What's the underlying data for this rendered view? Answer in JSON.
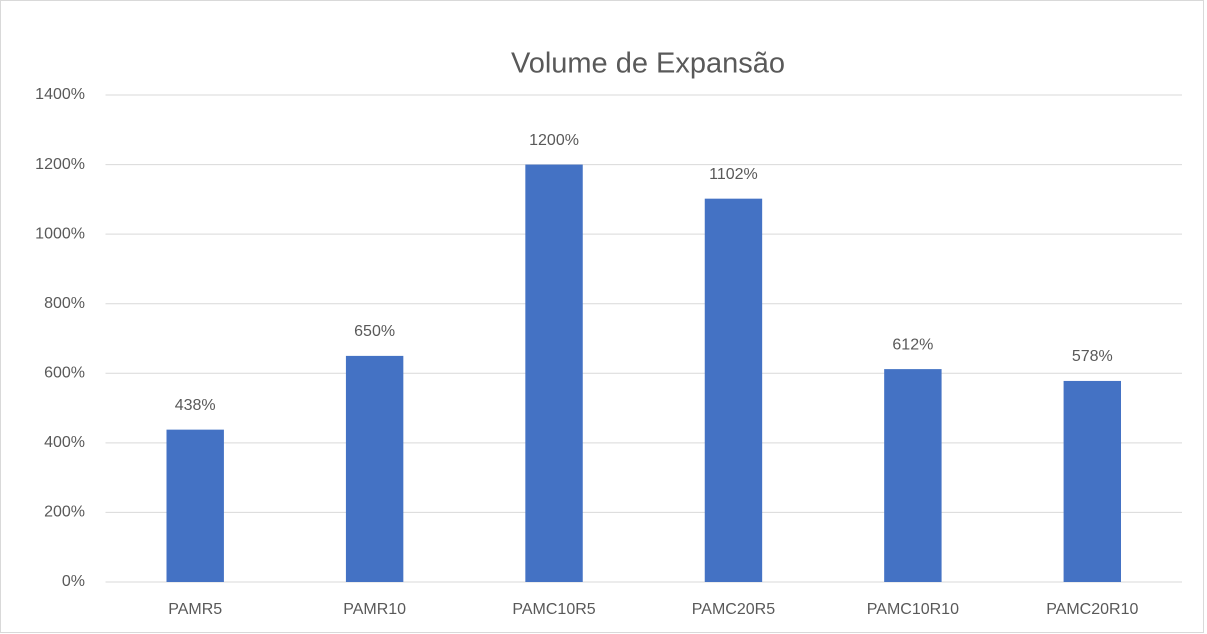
{
  "chart_data": {
    "type": "bar",
    "title": "Volume de Expansão",
    "categories": [
      "PAMR5",
      "PAMR10",
      "PAMC10R5",
      "PAMC20R5",
      "PAMC10R10",
      "PAMC20R10"
    ],
    "values": [
      438,
      650,
      1200,
      1102,
      612,
      578
    ],
    "value_labels": [
      "438%",
      "650%",
      "1200%",
      "1102%",
      "612%",
      "578%"
    ],
    "color": "#4472c4",
    "ylim": [
      0,
      1400
    ],
    "yticks": [
      {
        "value": 0,
        "label": "0%"
      },
      {
        "value": 200,
        "label": "200%"
      },
      {
        "value": 400,
        "label": "400%"
      },
      {
        "value": 600,
        "label": "600%"
      },
      {
        "value": 800,
        "label": "800%"
      },
      {
        "value": 1000,
        "label": "1000%"
      },
      {
        "value": 1200,
        "label": "1200%"
      },
      {
        "value": 1400,
        "label": "1400%"
      }
    ],
    "grid": true
  }
}
